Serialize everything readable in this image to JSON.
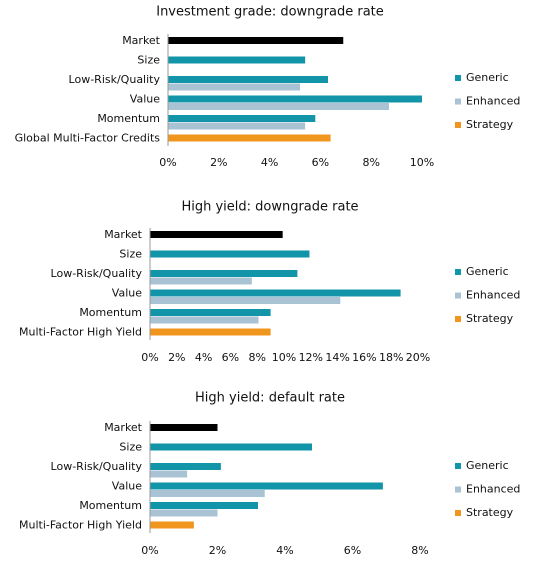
{
  "chart_data": [
    {
      "type": "bar",
      "title": "Investment grade: downgrade rate",
      "categories": [
        "Market",
        "Size",
        "Low-Risk/Quality",
        "Value",
        "Momentum",
        "Global Multi-Factor Credits"
      ],
      "series": [
        {
          "color": "#000000",
          "values": [
            6.9,
            null,
            null,
            null,
            null,
            null
          ]
        },
        {
          "name": "Generic",
          "color": "#1295a8",
          "values": [
            null,
            5.4,
            6.3,
            10.0,
            5.8,
            null
          ]
        },
        {
          "name": "Enhanced",
          "color": "#a9c3d5",
          "values": [
            null,
            null,
            5.2,
            8.7,
            5.4,
            null
          ]
        },
        {
          "name": "Strategy",
          "color": "#f0961e",
          "values": [
            null,
            null,
            null,
            null,
            null,
            6.4
          ]
        }
      ],
      "xlim": [
        0,
        10
      ],
      "xticks": [
        {
          "value": 0,
          "label": "0%"
        },
        {
          "value": 2,
          "label": "2%"
        },
        {
          "value": 4,
          "label": "4%"
        },
        {
          "value": 6,
          "label": "6%"
        },
        {
          "value": 8,
          "label": "8%"
        },
        {
          "value": 10,
          "label": "10%"
        }
      ]
    },
    {
      "type": "bar",
      "title": "High yield: downgrade rate",
      "categories": [
        "Market",
        "Size",
        "Low-Risk/Quality",
        "Value",
        "Momentum",
        "Multi-Factor High Yield"
      ],
      "series": [
        {
          "color": "#000000",
          "values": [
            9.9,
            null,
            null,
            null,
            null,
            null
          ]
        },
        {
          "name": "Generic",
          "color": "#1295a8",
          "values": [
            null,
            11.9,
            11.0,
            18.7,
            9.0,
            null
          ]
        },
        {
          "name": "Enhanced",
          "color": "#a9c3d5",
          "values": [
            null,
            null,
            7.6,
            14.2,
            8.1,
            null
          ]
        },
        {
          "name": "Strategy",
          "color": "#f0961e",
          "values": [
            null,
            null,
            null,
            null,
            null,
            9.0
          ]
        }
      ],
      "xlim": [
        0,
        20
      ],
      "xticks": [
        {
          "value": 0,
          "label": "0%"
        },
        {
          "value": 2,
          "label": "2%"
        },
        {
          "value": 4,
          "label": "4%"
        },
        {
          "value": 6,
          "label": "6%"
        },
        {
          "value": 8,
          "label": "8%"
        },
        {
          "value": 10,
          "label": "10%"
        },
        {
          "value": 12,
          "label": "12%"
        },
        {
          "value": 14,
          "label": "14%"
        },
        {
          "value": 16,
          "label": "16%"
        },
        {
          "value": 18,
          "label": "18%"
        },
        {
          "value": 20,
          "label": "20%"
        }
      ]
    },
    {
      "type": "bar",
      "title": "High yield: default rate",
      "categories": [
        "Market",
        "Size",
        "Low-Risk/Quality",
        "Value",
        "Momentum",
        "Multi-Factor High Yield"
      ],
      "series": [
        {
          "color": "#000000",
          "values": [
            2.0,
            null,
            null,
            null,
            null,
            null
          ]
        },
        {
          "name": "Generic",
          "color": "#1295a8",
          "values": [
            null,
            4.8,
            2.1,
            6.9,
            3.2,
            null
          ]
        },
        {
          "name": "Enhanced",
          "color": "#a9c3d5",
          "values": [
            null,
            null,
            1.1,
            3.4,
            2.0,
            null
          ]
        },
        {
          "name": "Strategy",
          "color": "#f0961e",
          "values": [
            null,
            null,
            null,
            null,
            null,
            1.3
          ]
        }
      ],
      "xlim": [
        0,
        8
      ],
      "xticks": [
        {
          "value": 0,
          "label": "0%"
        },
        {
          "value": 2,
          "label": "2%"
        },
        {
          "value": 4,
          "label": "4%"
        },
        {
          "value": 6,
          "label": "6%"
        },
        {
          "value": 8,
          "label": "8%"
        }
      ]
    }
  ]
}
